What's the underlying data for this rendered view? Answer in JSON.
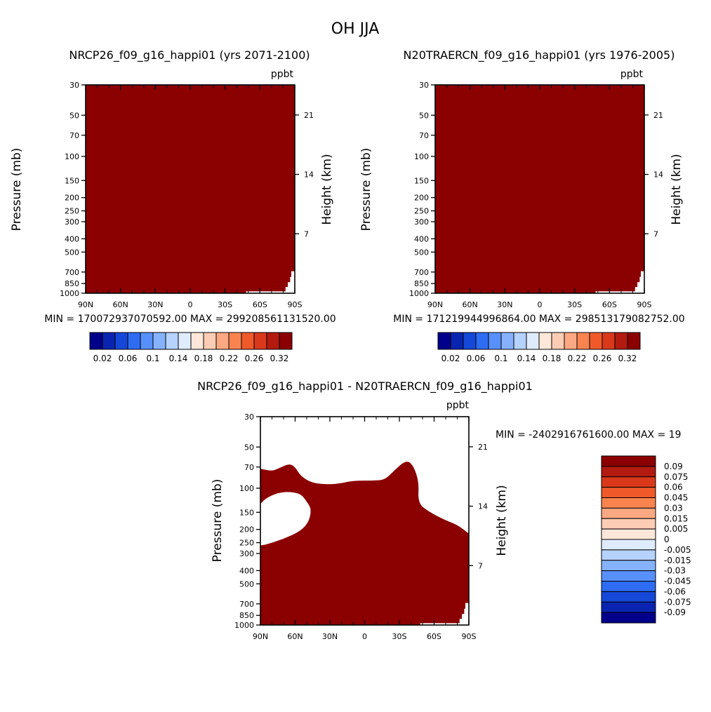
{
  "figure_title": "OH JJA",
  "colors": {
    "field": "#8b0000",
    "blank": "#ffffff",
    "frame": "#000000"
  },
  "chart_data": [
    {
      "type": "heatmap",
      "title": "NRCP26_f09_g16_happi01 (yrs 2071-2100)",
      "units": "ppbt",
      "ylabel": "Pressure (mb)",
      "ylabel_right": "Height (km)",
      "xticks": [
        "90N",
        "60N",
        "30N",
        "0",
        "30S",
        "60S",
        "90S"
      ],
      "x_values": [
        90,
        60,
        30,
        0,
        -30,
        -60,
        -90
      ],
      "yticks": [
        "30",
        "50",
        "70",
        "100",
        "150",
        "200",
        "250",
        "300",
        "400",
        "500",
        "700",
        "850",
        "1000"
      ],
      "y_values": [
        30,
        50,
        70,
        100,
        150,
        200,
        250,
        300,
        400,
        500,
        700,
        850,
        1000
      ],
      "yticks_right": [
        "21",
        "14",
        "7"
      ],
      "height_values_km": [
        21,
        14,
        7
      ],
      "stats": "MIN = 170072937070592.00   MAX = 299208561131520.00",
      "min": 170072937070592.0,
      "max": 299208561131520.0,
      "colorbar_labels": [
        "0.02",
        "0.06",
        "0.1",
        "0.14",
        "0.18",
        "0.22",
        "0.26",
        "0.32"
      ],
      "colorbar_levels": [
        0.02,
        0.04,
        0.06,
        0.08,
        0.1,
        0.12,
        0.14,
        0.16,
        0.18,
        0.2,
        0.22,
        0.24,
        0.26,
        0.28,
        0.32
      ],
      "fill_level": "above 0.32"
    },
    {
      "type": "heatmap",
      "title": "N20TRAERCN_f09_g16_happi01 (yrs 1976-2005)",
      "units": "ppbt",
      "ylabel": "Pressure (mb)",
      "ylabel_right": "Height (km)",
      "xticks": [
        "90N",
        "60N",
        "30N",
        "0",
        "30S",
        "60S",
        "90S"
      ],
      "x_values": [
        90,
        60,
        30,
        0,
        -30,
        -60,
        -90
      ],
      "yticks": [
        "30",
        "50",
        "70",
        "100",
        "150",
        "200",
        "250",
        "300",
        "400",
        "500",
        "700",
        "850",
        "1000"
      ],
      "y_values": [
        30,
        50,
        70,
        100,
        150,
        200,
        250,
        300,
        400,
        500,
        700,
        850,
        1000
      ],
      "yticks_right": [
        "21",
        "14",
        "7"
      ],
      "height_values_km": [
        21,
        14,
        7
      ],
      "stats": "MIN = 171219944996864.00   MAX = 298513179082752.00",
      "min": 171219944996864.0,
      "max": 298513179082752.0,
      "colorbar_labels": [
        "0.02",
        "0.06",
        "0.1",
        "0.14",
        "0.18",
        "0.22",
        "0.26",
        "0.32"
      ],
      "colorbar_levels": [
        0.02,
        0.04,
        0.06,
        0.08,
        0.1,
        0.12,
        0.14,
        0.16,
        0.18,
        0.2,
        0.22,
        0.24,
        0.26,
        0.28,
        0.32
      ],
      "fill_level": "above 0.32"
    },
    {
      "type": "heatmap",
      "title": "NRCP26_f09_g16_happi01 - N20TRAERCN_f09_g16_happi01",
      "units": "ppbt",
      "ylabel": "Pressure (mb)",
      "ylabel_right": "Height (km)",
      "xticks": [
        "90N",
        "60N",
        "30N",
        "0",
        "30S",
        "60S",
        "90S"
      ],
      "x_values": [
        90,
        60,
        30,
        0,
        -30,
        -60,
        -90
      ],
      "yticks": [
        "30",
        "50",
        "70",
        "100",
        "150",
        "200",
        "250",
        "300",
        "400",
        "500",
        "700",
        "850",
        "1000"
      ],
      "y_values": [
        30,
        50,
        70,
        100,
        150,
        200,
        250,
        300,
        400,
        500,
        700,
        850,
        1000
      ],
      "yticks_right": [
        "21",
        "14",
        "7"
      ],
      "height_values_km": [
        21,
        14,
        7
      ],
      "stats": "MIN = -2402916761600.00   MAX = 19",
      "min": -2402916761600.0,
      "colorbar_labels": [
        "0.09",
        "0.075",
        "0.06",
        "0.045",
        "0.03",
        "0.015",
        "0.005",
        "0",
        "-0.005",
        "-0.015",
        "-0.03",
        "-0.045",
        "-0.06",
        "-0.075",
        "-0.09"
      ],
      "fill_level": "above 0.09",
      "filled_region_upper_boundary": [
        {
          "lat": 90,
          "p": 72
        },
        {
          "lat": 80,
          "p": 75
        },
        {
          "lat": 75,
          "p": 72
        },
        {
          "lat": 65,
          "p": 66
        },
        {
          "lat": 60,
          "p": 70
        },
        {
          "lat": 55,
          "p": 82
        },
        {
          "lat": 45,
          "p": 92
        },
        {
          "lat": 30,
          "p": 94
        },
        {
          "lat": 20,
          "p": 92
        },
        {
          "lat": 10,
          "p": 88
        },
        {
          "lat": -10,
          "p": 88
        },
        {
          "lat": -18,
          "p": 86
        },
        {
          "lat": -25,
          "p": 75
        },
        {
          "lat": -36,
          "p": 62
        },
        {
          "lat": -42,
          "p": 68
        },
        {
          "lat": -47,
          "p": 90
        },
        {
          "lat": -46,
          "p": 128
        },
        {
          "lat": -55,
          "p": 148
        },
        {
          "lat": -70,
          "p": 172
        },
        {
          "lat": -80,
          "p": 185
        },
        {
          "lat": -90,
          "p": 215
        }
      ],
      "unfilled_pocket_boundary": [
        {
          "lat": 90,
          "p": 130
        },
        {
          "lat": 85,
          "p": 118
        },
        {
          "lat": 75,
          "p": 108
        },
        {
          "lat": 65,
          "p": 106
        },
        {
          "lat": 55,
          "p": 110
        },
        {
          "lat": 50,
          "p": 125
        },
        {
          "lat": 46,
          "p": 142
        },
        {
          "lat": 48,
          "p": 175
        },
        {
          "lat": 55,
          "p": 205
        },
        {
          "lat": 70,
          "p": 235
        },
        {
          "lat": 85,
          "p": 258
        },
        {
          "lat": 90,
          "p": 262
        }
      ]
    }
  ]
}
